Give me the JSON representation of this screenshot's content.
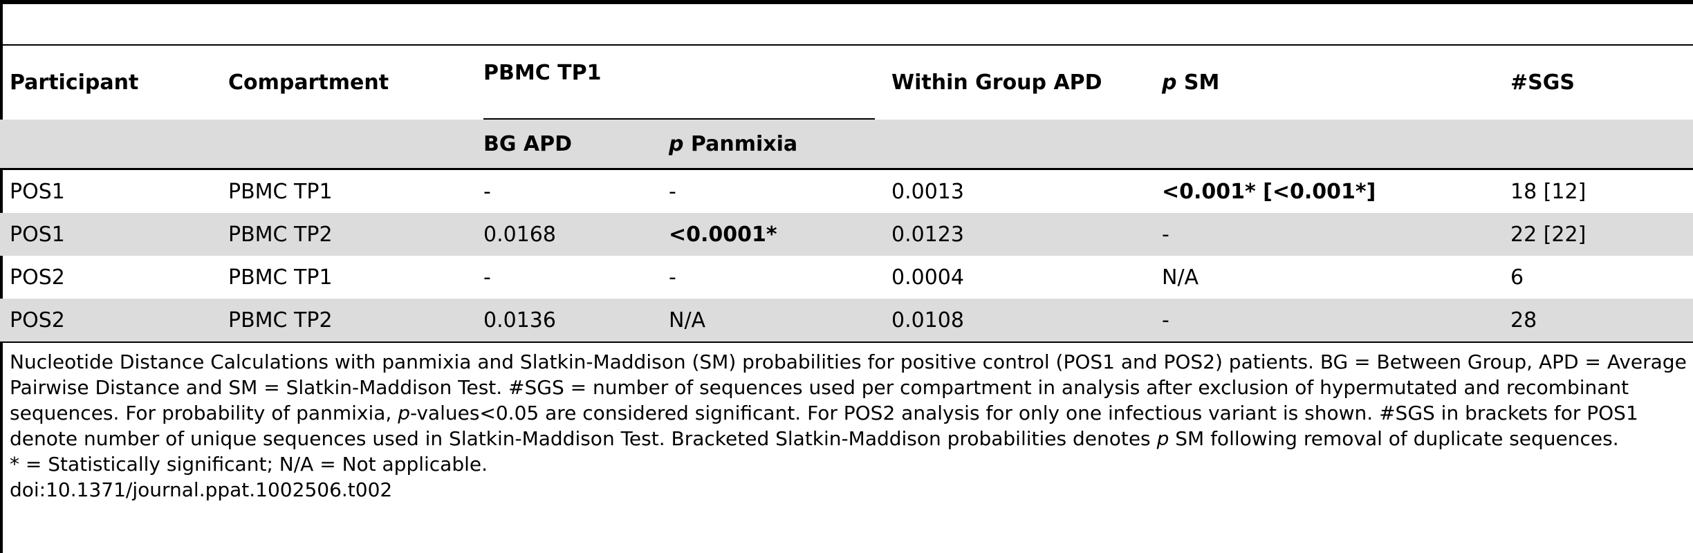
{
  "table": {
    "headers": {
      "participant": "Participant",
      "compartment": "Compartment",
      "group": "PBMC TP1",
      "bg_apd": "BG APD",
      "p_panmixia_p": "p",
      "p_panmixia_label": " Panmixia",
      "within_group_apd": "Within Group APD",
      "p_sm_p": "p",
      "p_sm_label": " SM",
      "sgs": "#SGS"
    },
    "rows": [
      {
        "participant": "POS1",
        "compartment": "PBMC TP1",
        "bg_apd": "-",
        "p_panmixia": "-",
        "within_apd": "0.0013",
        "p_sm": "<0.001* [<0.001*]",
        "sgs": "18 [12]"
      },
      {
        "participant": "POS1",
        "compartment": "PBMC TP2",
        "bg_apd": "0.0168",
        "p_panmixia": "<0.0001*",
        "within_apd": "0.0123",
        "p_sm": "-",
        "sgs": "22 [22]"
      },
      {
        "participant": "POS2",
        "compartment": "PBMC TP1",
        "bg_apd": "-",
        "p_panmixia": "-",
        "within_apd": "0.0004",
        "p_sm": "N/A",
        "sgs": "6"
      },
      {
        "participant": "POS2",
        "compartment": "PBMC TP2",
        "bg_apd": "0.0136",
        "p_panmixia": "N/A",
        "within_apd": "0.0108",
        "p_sm": "-",
        "sgs": "28"
      }
    ]
  },
  "notes": {
    "caption_part1": "Nucleotide Distance Calculations with panmixia and Slatkin-Maddison (SM) probabilities for positive control (POS1 and POS2) patients. BG = Between Group, APD = Average Pairwise Distance and SM = Slatkin-Maddison Test. #SGS = number of sequences used per compartment in analysis after exclusion of hypermutated and recombinant sequences. For probability of panmixia, ",
    "caption_p1": "p",
    "caption_part2": "-values<0.05 are considered significant. For POS2 analysis for only one infectious variant is shown. #SGS in brackets for POS1 denote number of unique sequences used in Slatkin-Maddison Test. Bracketed Slatkin-Maddison probabilities denotes ",
    "caption_p2": "p",
    "caption_part3": " SM following removal of duplicate sequences.",
    "footnote": "* = Statistically significant; N/A = Not applicable.",
    "doi": "doi:10.1371/journal.ppat.1002506.t002"
  }
}
